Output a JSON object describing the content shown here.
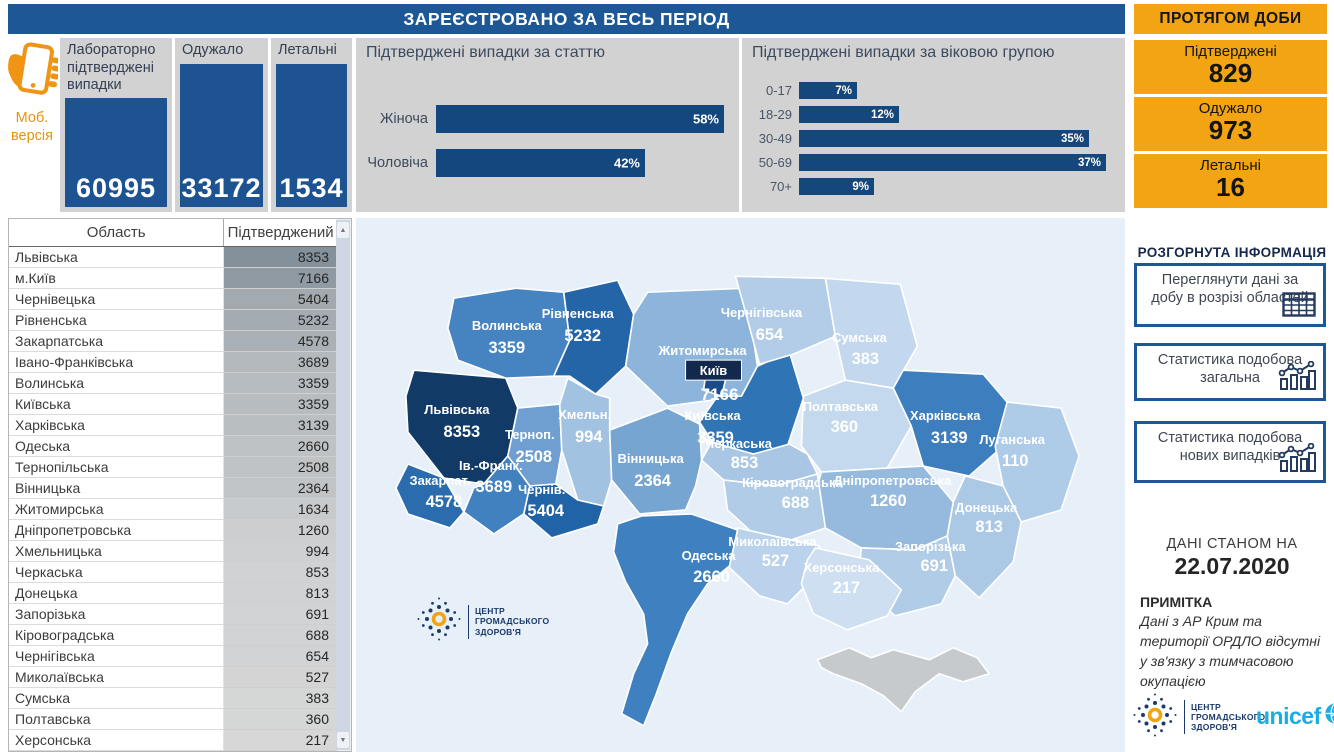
{
  "header": {
    "main_title": "ЗАРЕЄСТРОВАНО ЗА ВЕСЬ ПЕРІОД",
    "daily_title": "ПРОТЯГОМ ДОБИ"
  },
  "mobile": {
    "line1": "Моб.",
    "line2": "версія"
  },
  "kpis": [
    {
      "title": "Лабораторно підтверджені випадки",
      "value": "60995"
    },
    {
      "title": "Одужало",
      "value": "33172"
    },
    {
      "title": "Летальні",
      "value": "1534"
    }
  ],
  "daily_cards": [
    {
      "label": "Підтверджені",
      "value": "829"
    },
    {
      "label": "Одужало",
      "value": "973"
    },
    {
      "label": "Летальні",
      "value": "16"
    }
  ],
  "sidebar": {
    "expanded_title": "РОЗГОРНУТА ІНФОРМАЦІЯ",
    "buttons": [
      {
        "label": "Переглянути дані за добу в розрізі областей",
        "icon": "table-icon"
      },
      {
        "label": "Статистика подобова загальна",
        "icon": "line-chart-icon"
      },
      {
        "label": "Статистика подобова нових випадків",
        "icon": "line-chart-icon"
      }
    ],
    "as_of_label": "ДАНІ СТАНОМ НА",
    "as_of_date": "22.07.2020",
    "note_title": "ПРИМІТКА",
    "note_text": "Дані з АР Крим та території ОРДЛО відсутні у зв'язку з тимчасовою окупацією"
  },
  "logos": {
    "phc_lines": [
      "ЦЕНТР",
      "ГРОМАДСЬКОГО",
      "ЗДОРОВ'Я"
    ],
    "unicef": "unicef"
  },
  "colors": {
    "header_blue": "#1d5795",
    "accent_orange": "#f2a412",
    "bar_navy": "#14477e",
    "kpi_blue": "#1d5390",
    "unicef_cyan": "#1cabe2",
    "map_background": "#e7f0f9",
    "crimea_gray": "#c6cacd"
  },
  "chart_data": [
    {
      "id": "gender",
      "type": "bar",
      "title": "Підтверджені випадки за статтю",
      "orientation": "horizontal",
      "categories": [
        "Жіноча",
        "Чоловіча"
      ],
      "values": [
        58,
        42
      ],
      "unit": "%",
      "xlim": [
        0,
        60
      ],
      "bar_color": "#14477e",
      "grid": false,
      "value_labels": "inside-end"
    },
    {
      "id": "age",
      "type": "bar",
      "title": "Підтверджені випадки за віковою групою",
      "orientation": "horizontal",
      "categories": [
        "0-17",
        "18-29",
        "30-49",
        "50-69",
        "70+"
      ],
      "values": [
        7,
        12,
        35,
        37,
        9
      ],
      "unit": "%",
      "xlim": [
        0,
        40
      ],
      "bar_color": "#14477e",
      "grid": false,
      "value_labels": "inside-end"
    },
    {
      "id": "region-table",
      "type": "table",
      "columns": [
        "Область",
        "Підтверджений"
      ],
      "rows": [
        [
          "Львівська",
          8353
        ],
        [
          "м.Київ",
          7166
        ],
        [
          "Чернівецька",
          5404
        ],
        [
          "Рівненська",
          5232
        ],
        [
          "Закарпатська",
          4578
        ],
        [
          "Івано-Франківська",
          3689
        ],
        [
          "Волинська",
          3359
        ],
        [
          "Київська",
          3359
        ],
        [
          "Харківська",
          3139
        ],
        [
          "Одеська",
          2660
        ],
        [
          "Тернопільська",
          2508
        ],
        [
          "Вінницька",
          2364
        ],
        [
          "Житомирська",
          1634
        ],
        [
          "Дніпропетровська",
          1260
        ],
        [
          "Хмельницька",
          994
        ],
        [
          "Черкаська",
          853
        ],
        [
          "Донецька",
          813
        ],
        [
          "Запорізька",
          691
        ],
        [
          "Кіровоградська",
          688
        ],
        [
          "Чернігівська",
          654
        ],
        [
          "Миколаївська",
          527
        ],
        [
          "Сумська",
          383
        ],
        [
          "Полтавська",
          360
        ],
        [
          "Херсонська",
          217
        ]
      ],
      "max_value": 8353
    },
    {
      "id": "ukraine-map",
      "type": "choropleth",
      "regions": [
        {
          "id": "lviv",
          "name": "Львівська",
          "value": 8353,
          "color": "#123a66"
        },
        {
          "id": "volyn",
          "name": "Волинська",
          "value": 3359,
          "color": "#4584c1"
        },
        {
          "id": "rivne",
          "name": "Рівненська",
          "value": 5232,
          "color": "#2465a8"
        },
        {
          "id": "zhytomyr",
          "name": "Житомирська",
          "value": 1634,
          "color": "#8db4da"
        },
        {
          "id": "kyivska",
          "name": "Київська",
          "value": 3359,
          "color": "#2f74b5"
        },
        {
          "id": "kyiv",
          "name": "Київ",
          "value": 7166,
          "color": "#1a4d88"
        },
        {
          "id": "chernihiv",
          "name": "Чернігівська",
          "value": 654,
          "color": "#b3cde8"
        },
        {
          "id": "sumy",
          "name": "Сумська",
          "value": 383,
          "color": "#c3d8ee"
        },
        {
          "id": "ternopil",
          "name": "Терноп.",
          "value": 2508,
          "color": "#6f9fd0"
        },
        {
          "id": "khmeln",
          "name": "Хмельн.",
          "value": 994,
          "color": "#a2c2e2"
        },
        {
          "id": "vinn",
          "name": "Вінницька",
          "value": 2364,
          "color": "#77a5d2"
        },
        {
          "id": "cherkasy",
          "name": "Черкаська",
          "value": 853,
          "color": "#a9c7e4"
        },
        {
          "id": "poltava",
          "name": "Полтавська",
          "value": 360,
          "color": "#c4d9ee"
        },
        {
          "id": "kharkiv",
          "name": "Харківська",
          "value": 3139,
          "color": "#3c7ebe"
        },
        {
          "id": "luhansk",
          "name": "Луганська",
          "value": 110,
          "color": "#aecbe7"
        },
        {
          "id": "donetsk",
          "name": "Донецька",
          "value": 813,
          "color": "#abc8e5"
        },
        {
          "id": "dnipro",
          "name": "Дніпропетровська",
          "value": 1260,
          "color": "#96bade"
        },
        {
          "id": "zapor",
          "name": "Запорізька",
          "value": 691,
          "color": "#b1cce7"
        },
        {
          "id": "kirovohrad",
          "name": "Кіровоградська",
          "value": 688,
          "color": "#b1cce7"
        },
        {
          "id": "mykolaiv",
          "name": "Миколаївська",
          "value": 527,
          "color": "#bad2eb"
        },
        {
          "id": "kherson",
          "name": "Херсонська",
          "value": 217,
          "color": "#cddff0"
        },
        {
          "id": "odesa",
          "name": "Одеська",
          "value": 2660,
          "color": "#3f81c0"
        },
        {
          "id": "cherniv",
          "name": "Чернів.",
          "value": 5404,
          "color": "#2063a6"
        },
        {
          "id": "ivfrank",
          "name": "Ів.-Франк.",
          "value": 3689,
          "color": "#4181bf"
        },
        {
          "id": "zakarp",
          "name": "Закарпат.",
          "value": 4578,
          "color": "#2a6cae"
        }
      ],
      "no_data_region": {
        "name": "Крим",
        "color": "#c6cacd"
      }
    }
  ]
}
